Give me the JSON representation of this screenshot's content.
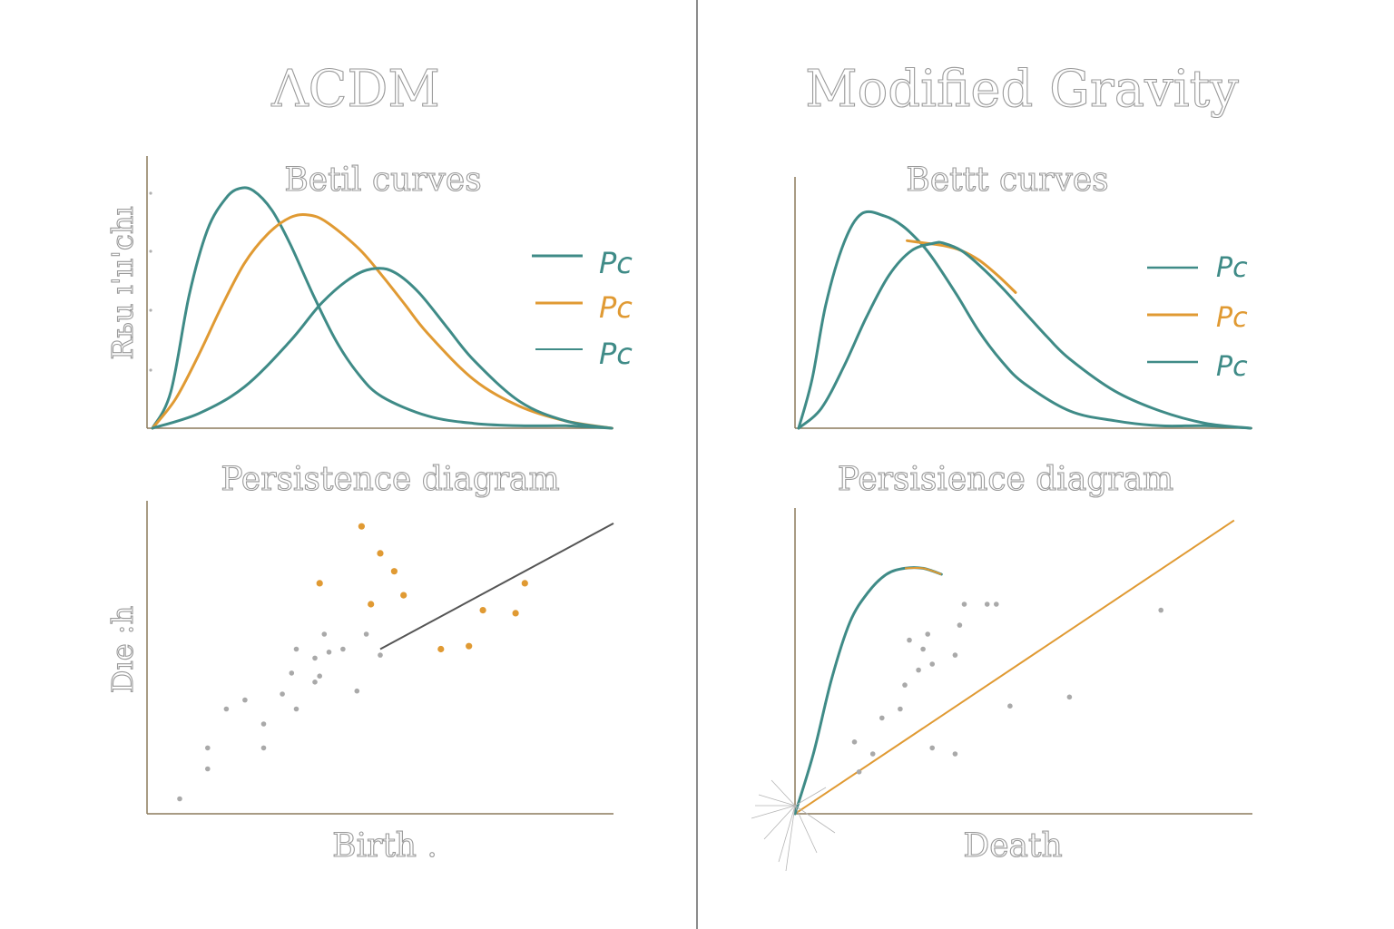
{
  "colors": {
    "teal": "#3f8b87",
    "orange": "#e09a33",
    "axis": "#8c7a5c",
    "point": "#a9a9a9",
    "diagonal": "#555555",
    "divider": "#6e6e6e"
  },
  "panels": [
    {
      "title": "ΛCDM",
      "betti": {
        "subtitle": "Betil curves",
        "ylabel": "Rьu ı'ıı'chı",
        "legend": [
          {
            "label": "Pc",
            "color": "teal"
          },
          {
            "label": "Pc",
            "color": "orange"
          },
          {
            "label": "Pc",
            "color": "teal"
          }
        ]
      },
      "persistence": {
        "subtitle": "Persistence diagram",
        "ylabel": "Dıe :h",
        "xlabel": "Birth ."
      }
    },
    {
      "title": "Modified Gravity",
      "betti": {
        "subtitle": "Bettt curves",
        "legend": [
          {
            "label": "Pc",
            "color": "teal"
          },
          {
            "label": "Pc",
            "color": "orange"
          },
          {
            "label": "Pc",
            "color": "teal"
          }
        ]
      },
      "persistence": {
        "subtitle": "Persisience diagram",
        "xlabel": "Death"
      }
    }
  ],
  "chart_data": [
    {
      "type": "line",
      "panel": "ΛCDM",
      "title": "Betil curves",
      "ylabel": "Rьu ı'ıı'chı",
      "xlim": [
        0,
        1
      ],
      "ylim": [
        0,
        1
      ],
      "legend_position": "right",
      "series": [
        {
          "name": "Pc",
          "color": "teal",
          "x": [
            0,
            0.04,
            0.08,
            0.12,
            0.16,
            0.19,
            0.22,
            0.26,
            0.3,
            0.35,
            0.4,
            0.45,
            0.5,
            0.6,
            0.7,
            0.8,
            0.9,
            1.0
          ],
          "y": [
            0,
            0.15,
            0.55,
            0.82,
            0.95,
            0.99,
            0.98,
            0.9,
            0.76,
            0.55,
            0.36,
            0.22,
            0.13,
            0.05,
            0.02,
            0.01,
            0.01,
            0.0
          ]
        },
        {
          "name": "Pc",
          "color": "orange",
          "x": [
            0,
            0.05,
            0.1,
            0.15,
            0.2,
            0.25,
            0.3,
            0.34,
            0.38,
            0.45,
            0.5,
            0.55,
            0.6,
            0.7,
            0.8,
            0.9,
            1.0
          ],
          "y": [
            0,
            0.12,
            0.3,
            0.5,
            0.68,
            0.8,
            0.87,
            0.88,
            0.85,
            0.74,
            0.63,
            0.51,
            0.39,
            0.2,
            0.09,
            0.03,
            0.0
          ]
        },
        {
          "name": "Pc",
          "color": "teal",
          "x": [
            0,
            0.1,
            0.2,
            0.3,
            0.37,
            0.44,
            0.49,
            0.53,
            0.58,
            0.64,
            0.7,
            0.8,
            0.9,
            1.0
          ],
          "y": [
            0,
            0.06,
            0.17,
            0.36,
            0.52,
            0.63,
            0.66,
            0.64,
            0.56,
            0.42,
            0.28,
            0.11,
            0.03,
            0.0
          ]
        }
      ]
    },
    {
      "type": "line",
      "panel": "Modified Gravity",
      "title": "Bettt curves",
      "xlim": [
        0,
        1
      ],
      "ylim": [
        0,
        1
      ],
      "legend_position": "right",
      "series": [
        {
          "name": "Pc",
          "color": "teal",
          "x": [
            0,
            0.03,
            0.06,
            0.1,
            0.14,
            0.19,
            0.23,
            0.27,
            0.3,
            0.35,
            0.4,
            0.45,
            0.5,
            0.6,
            0.7,
            0.8,
            0.9,
            1.0
          ],
          "y": [
            0,
            0.2,
            0.5,
            0.75,
            0.87,
            0.86,
            0.82,
            0.75,
            0.68,
            0.54,
            0.39,
            0.27,
            0.18,
            0.07,
            0.03,
            0.01,
            0.01,
            0.0
          ]
        },
        {
          "name": "Pc",
          "color": "orange",
          "x": [
            0.24,
            0.28,
            0.32,
            0.36,
            0.4,
            0.44,
            0.48
          ],
          "y": [
            0.76,
            0.75,
            0.74,
            0.72,
            0.68,
            0.62,
            0.55
          ]
        },
        {
          "name": "Pc",
          "color": "teal",
          "x": [
            0,
            0.05,
            0.1,
            0.15,
            0.2,
            0.25,
            0.3,
            0.32,
            0.36,
            0.4,
            0.45,
            0.5,
            0.55,
            0.6,
            0.7,
            0.8,
            0.9,
            1.0
          ],
          "y": [
            0,
            0.08,
            0.25,
            0.45,
            0.62,
            0.72,
            0.75,
            0.75,
            0.72,
            0.66,
            0.57,
            0.47,
            0.37,
            0.28,
            0.15,
            0.07,
            0.02,
            0.0
          ]
        }
      ]
    },
    {
      "type": "scatter",
      "panel": "ΛCDM",
      "title": "Persistence diagram",
      "xlabel": "Birth .",
      "ylabel": "Dıe :h",
      "xlim": [
        0,
        1
      ],
      "ylim": [
        0,
        1
      ],
      "diagonal": {
        "x": [
          0.5,
          1.0
        ],
        "y": [
          0.55,
          0.97
        ],
        "color": "diagonal"
      },
      "series": [
        {
          "color": "point",
          "points": [
            [
              0.07,
              0.05
            ],
            [
              0.13,
              0.15
            ],
            [
              0.13,
              0.22
            ],
            [
              0.17,
              0.35
            ],
            [
              0.25,
              0.3
            ],
            [
              0.25,
              0.22
            ],
            [
              0.21,
              0.38
            ],
            [
              0.31,
              0.47
            ],
            [
              0.32,
              0.55
            ],
            [
              0.32,
              0.35
            ],
            [
              0.29,
              0.4
            ],
            [
              0.36,
              0.52
            ],
            [
              0.38,
              0.6
            ],
            [
              0.37,
              0.46
            ],
            [
              0.42,
              0.55
            ],
            [
              0.45,
              0.41
            ],
            [
              0.47,
              0.6
            ],
            [
              0.5,
              0.53
            ],
            [
              0.39,
              0.54
            ],
            [
              0.36,
              0.44
            ]
          ]
        },
        {
          "color": "orange",
          "points": [
            [
              0.37,
              0.77
            ],
            [
              0.46,
              0.96
            ],
            [
              0.5,
              0.87
            ],
            [
              0.53,
              0.81
            ],
            [
              0.55,
              0.73
            ],
            [
              0.48,
              0.7
            ],
            [
              0.63,
              0.55
            ],
            [
              0.69,
              0.56
            ],
            [
              0.72,
              0.68
            ],
            [
              0.79,
              0.67
            ],
            [
              0.81,
              0.77
            ]
          ]
        }
      ]
    },
    {
      "type": "scatter",
      "panel": "Modified Gravity",
      "title": "Persisience diagram",
      "xlabel": "Death",
      "xlim": [
        0,
        1
      ],
      "ylim": [
        0,
        1
      ],
      "diagonal": {
        "x": [
          0.0,
          0.96
        ],
        "y": [
          0.0,
          0.98
        ],
        "color": "orange"
      },
      "curve": {
        "color": "teal",
        "x": [
          0.0,
          0.04,
          0.08,
          0.12,
          0.16,
          0.2,
          0.24,
          0.28,
          0.32
        ],
        "y": [
          0.0,
          0.2,
          0.45,
          0.64,
          0.74,
          0.8,
          0.82,
          0.82,
          0.8
        ]
      },
      "series": [
        {
          "color": "point",
          "points": [
            [
              0.14,
              0.14
            ],
            [
              0.17,
              0.2
            ],
            [
              0.13,
              0.24
            ],
            [
              0.19,
              0.32
            ],
            [
              0.23,
              0.35
            ],
            [
              0.24,
              0.43
            ],
            [
              0.27,
              0.48
            ],
            [
              0.28,
              0.55
            ],
            [
              0.25,
              0.58
            ],
            [
              0.29,
              0.6
            ],
            [
              0.3,
              0.5
            ],
            [
              0.35,
              0.53
            ],
            [
              0.36,
              0.63
            ],
            [
              0.37,
              0.7
            ],
            [
              0.42,
              0.7
            ],
            [
              0.44,
              0.7
            ],
            [
              0.3,
              0.22
            ],
            [
              0.35,
              0.2
            ],
            [
              0.47,
              0.36
            ],
            [
              0.6,
              0.39
            ],
            [
              0.8,
              0.68
            ]
          ]
        }
      ]
    }
  ]
}
